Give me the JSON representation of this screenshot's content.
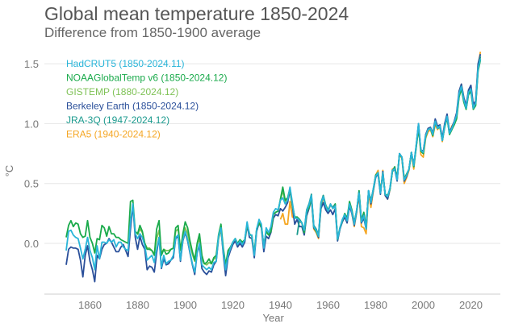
{
  "title": "Global mean temperature 1850-2024",
  "subtitle": "Difference from 1850-1900 average",
  "chart_data": {
    "type": "line",
    "title": "Global mean temperature 1850-2024",
    "subtitle": "Difference from 1850-1900 average",
    "xlabel": "Year",
    "ylabel": "°C",
    "xlim": [
      1850,
      2024
    ],
    "ylim": [
      -0.35,
      1.6
    ],
    "xticks": [
      1860,
      1880,
      1900,
      1920,
      1940,
      1960,
      1980,
      2000,
      2020
    ],
    "yticks": [
      "0.0",
      "0.5",
      "1.0",
      "1.5"
    ],
    "grid": "horizontal",
    "legend_position": "top-left",
    "series": [
      {
        "name": "ERA5 (1940-2024.12)",
        "color": "#f5a623",
        "start": 1940,
        "values": [
          0.2,
          0.25,
          0.16,
          0.16,
          0.35,
          0.22,
          0.21,
          0.22,
          0.18,
          0.17,
          0.11,
          0.25,
          0.3,
          0.38,
          0.12,
          0.09,
          0.04,
          0.31,
          0.38,
          0.3,
          0.27,
          0.33,
          0.29,
          0.32,
          0.03,
          0.13,
          0.19,
          0.24,
          0.18,
          0.32,
          0.25,
          0.14,
          0.26,
          0.4,
          0.14,
          0.13,
          0.08,
          0.42,
          0.3,
          0.44,
          0.57,
          0.61,
          0.42,
          0.61,
          0.4,
          0.37,
          0.45,
          0.62,
          0.63,
          0.53,
          0.74,
          0.71,
          0.5,
          0.55,
          0.61,
          0.75,
          0.62,
          0.82,
          0.98,
          0.74,
          0.72,
          0.88,
          0.93,
          0.95,
          0.89,
          0.99,
          0.95,
          0.98,
          0.85,
          0.98,
          1.05,
          0.92,
          0.98,
          1.01,
          1.07,
          1.23,
          1.33,
          1.21,
          1.13,
          1.27,
          1.3,
          1.15,
          1.19,
          1.48,
          1.6
        ]
      },
      {
        "name": "Berkeley Earth (1850-2024.12)",
        "color": "#2a4f9a",
        "start": 1850,
        "values": [
          -0.18,
          -0.05,
          -0.03,
          -0.04,
          -0.04,
          -0.05,
          -0.14,
          -0.28,
          -0.1,
          -0.02,
          -0.15,
          -0.22,
          -0.32,
          -0.1,
          -0.13,
          -0.05,
          -0.01,
          0.0,
          0.04,
          0.01,
          -0.03,
          -0.07,
          -0.07,
          -0.03,
          -0.01,
          -0.06,
          -0.11,
          0.12,
          0.32,
          0.05,
          -0.05,
          0.06,
          -0.01,
          -0.05,
          -0.22,
          -0.19,
          -0.2,
          -0.24,
          -0.08,
          0.05,
          -0.21,
          -0.13,
          -0.18,
          -0.17,
          -0.14,
          -0.12,
          0.04,
          0.06,
          -0.15,
          0.02,
          0.09,
          0.02,
          -0.08,
          -0.18,
          -0.26,
          -0.08,
          -0.02,
          -0.21,
          -0.24,
          -0.26,
          -0.23,
          -0.24,
          -0.18,
          -0.15,
          0.04,
          0.12,
          -0.09,
          -0.27,
          -0.12,
          -0.06,
          -0.01,
          0.02,
          -0.03,
          0.0,
          -0.03,
          0.01,
          0.15,
          0.05,
          0.04,
          -0.12,
          0.1,
          0.17,
          0.13,
          -0.07,
          0.06,
          0.04,
          0.09,
          0.21,
          0.24,
          0.23,
          0.29,
          0.27,
          0.3,
          0.34,
          0.44,
          0.31,
          0.16,
          0.2,
          0.14,
          0.14,
          0.07,
          0.23,
          0.29,
          0.37,
          0.13,
          0.1,
          0.05,
          0.29,
          0.34,
          0.28,
          0.25,
          0.28,
          0.24,
          0.29,
          0.02,
          0.12,
          0.18,
          0.22,
          0.17,
          0.31,
          0.25,
          0.15,
          0.26,
          0.41,
          0.17,
          0.21,
          0.12,
          0.44,
          0.33,
          0.44,
          0.55,
          0.58,
          0.41,
          0.6,
          0.4,
          0.37,
          0.45,
          0.6,
          0.62,
          0.52,
          0.75,
          0.72,
          0.52,
          0.56,
          0.62,
          0.76,
          0.65,
          0.81,
          1.0,
          0.78,
          0.77,
          0.91,
          0.96,
          0.97,
          0.92,
          1.04,
          0.98,
          0.99,
          0.88,
          1.0,
          1.08,
          0.93,
          0.97,
          1.02,
          1.09,
          1.27,
          1.33,
          1.22,
          1.15,
          1.28,
          1.32,
          1.16,
          1.19,
          1.5,
          1.58
        ]
      },
      {
        "name": "GISTEMP (1880-2024.12)",
        "color": "#7fc256",
        "start": 1880,
        "values": [
          0.07,
          0.12,
          0.09,
          0.0,
          -0.04,
          -0.04,
          -0.06,
          -0.09,
          0.04,
          0.11,
          -0.08,
          -0.05,
          -0.06,
          -0.06,
          -0.05,
          -0.04,
          0.1,
          0.12,
          -0.05,
          0.05,
          0.13,
          0.08,
          0.0,
          -0.09,
          -0.15,
          -0.01,
          0.04,
          -0.13,
          -0.17,
          -0.18,
          -0.16,
          -0.17,
          -0.13,
          -0.12,
          0.04,
          0.12,
          -0.06,
          -0.19,
          -0.08,
          -0.04,
          0.01,
          0.04,
          0.0,
          0.03,
          0.01,
          0.03,
          0.16,
          0.08,
          0.06,
          -0.08,
          0.12,
          0.17,
          0.14,
          -0.02,
          0.1,
          0.07,
          0.1,
          0.24,
          0.26,
          0.27,
          0.36,
          0.44,
          0.35,
          0.37,
          0.45,
          0.32,
          0.22,
          0.21,
          0.2,
          0.17,
          0.09,
          0.26,
          0.3,
          0.39,
          0.14,
          0.1,
          0.06,
          0.32,
          0.39,
          0.31,
          0.28,
          0.32,
          0.3,
          0.32,
          0.04,
          0.13,
          0.19,
          0.24,
          0.2,
          0.34,
          0.27,
          0.17,
          0.27,
          0.43,
          0.19,
          0.25,
          0.14,
          0.43,
          0.35,
          0.45,
          0.56,
          0.59,
          0.43,
          0.58,
          0.41,
          0.39,
          0.45,
          0.6,
          0.63,
          0.55,
          0.74,
          0.72,
          0.54,
          0.57,
          0.62,
          0.76,
          0.64,
          0.8,
          0.97,
          0.77,
          0.75,
          0.89,
          0.95,
          0.96,
          0.9,
          1.02,
          0.96,
          0.97,
          0.86,
          0.97,
          1.05,
          0.91,
          0.95,
          1.0,
          1.05,
          1.23,
          1.3,
          1.19,
          1.12,
          1.25,
          1.28,
          1.12,
          1.16,
          1.45,
          1.54
        ]
      },
      {
        "name": "NOAAGlobalTemp v6 (1850-2024.12)",
        "color": "#1aaa4b",
        "start": 1850,
        "values": [
          0.05,
          0.15,
          0.19,
          0.14,
          0.17,
          0.16,
          0.08,
          0.05,
          0.06,
          0.19,
          0.05,
          0.0,
          -0.08,
          0.04,
          0.03,
          0.15,
          0.13,
          0.06,
          0.14,
          0.08,
          0.08,
          0.05,
          0.05,
          0.03,
          0.02,
          0.01,
          0.0,
          0.35,
          0.36,
          0.1,
          0.08,
          0.15,
          0.1,
          0.0,
          -0.05,
          -0.05,
          -0.06,
          -0.1,
          0.12,
          0.19,
          -0.1,
          -0.05,
          -0.09,
          -0.08,
          -0.05,
          -0.04,
          0.13,
          0.15,
          -0.06,
          0.08,
          0.18,
          0.13,
          0.02,
          -0.07,
          -0.14,
          0.0,
          0.08,
          -0.1,
          -0.17,
          -0.16,
          -0.13,
          -0.17,
          -0.12,
          -0.1,
          0.07,
          0.16,
          -0.04,
          -0.18,
          -0.06,
          -0.03,
          0.01,
          0.04,
          0.0,
          0.03,
          0.01,
          0.03,
          0.16,
          0.08,
          0.06,
          -0.08,
          0.12,
          0.17,
          0.14,
          -0.02,
          0.1,
          0.07,
          0.1,
          0.24,
          0.26,
          0.27,
          0.37,
          0.47,
          0.36,
          0.38,
          0.46,
          0.32,
          0.22,
          0.22,
          0.2,
          0.17,
          0.09,
          0.26,
          0.3,
          0.39,
          0.14,
          0.1,
          0.06,
          0.32,
          0.4,
          0.32,
          0.28,
          0.32,
          0.3,
          0.33,
          0.04,
          0.13,
          0.19,
          0.25,
          0.21,
          0.35,
          0.28,
          0.17,
          0.27,
          0.44,
          0.19,
          0.26,
          0.14,
          0.43,
          0.36,
          0.45,
          0.57,
          0.59,
          0.43,
          0.58,
          0.41,
          0.4,
          0.45,
          0.6,
          0.64,
          0.55,
          0.74,
          0.72,
          0.54,
          0.58,
          0.62,
          0.76,
          0.64,
          0.8,
          0.96,
          0.77,
          0.75,
          0.89,
          0.95,
          0.96,
          0.9,
          1.01,
          0.96,
          0.97,
          0.86,
          0.97,
          1.05,
          0.91,
          0.95,
          0.99,
          1.04,
          1.22,
          1.29,
          1.18,
          1.12,
          1.24,
          1.27,
          1.12,
          1.15,
          1.44,
          1.53
        ]
      },
      {
        "name": "JRA-3Q (1947-2024.12)",
        "color": "#1b9a8e",
        "start": 1947,
        "values": [
          0.07,
          0.2,
          0.17,
          0.11,
          0.28,
          0.33,
          0.41,
          0.15,
          0.12,
          0.07,
          0.34,
          0.4,
          0.31,
          0.27,
          0.32,
          0.3,
          0.32,
          0.03,
          0.13,
          0.19,
          0.24,
          0.19,
          0.33,
          0.27,
          0.17,
          0.27,
          0.43,
          0.18,
          0.24,
          0.13,
          0.44,
          0.35,
          0.45,
          0.56,
          0.59,
          0.42,
          0.59,
          0.41,
          0.39,
          0.46,
          0.61,
          0.63,
          0.54,
          0.75,
          0.72,
          0.53,
          0.57,
          0.62,
          0.76,
          0.65,
          0.81,
          0.99,
          0.78,
          0.76,
          0.9,
          0.95,
          0.96,
          0.91,
          1.02,
          0.96,
          0.98,
          0.86,
          0.98,
          1.06,
          0.92,
          0.96,
          1.01,
          1.07,
          1.25,
          1.31,
          1.2,
          1.13,
          1.26,
          1.29,
          1.13,
          1.17,
          1.46,
          1.56
        ]
      },
      {
        "name": "HadCRUT5 (1850-2024.11)",
        "color": "#29b5d9",
        "start": 1850,
        "values": [
          -0.06,
          0.1,
          0.11,
          0.07,
          0.05,
          0.04,
          -0.04,
          -0.13,
          -0.05,
          0.05,
          -0.06,
          -0.12,
          -0.22,
          -0.02,
          -0.13,
          0.01,
          0.01,
          0.0,
          0.03,
          0.01,
          0.03,
          -0.03,
          0.01,
          0.01,
          -0.03,
          -0.05,
          -0.06,
          0.18,
          0.33,
          0.08,
          0.04,
          0.08,
          0.05,
          -0.02,
          -0.14,
          -0.12,
          -0.1,
          -0.16,
          -0.05,
          0.05,
          -0.2,
          -0.1,
          -0.17,
          -0.15,
          -0.14,
          -0.1,
          0.05,
          0.07,
          -0.14,
          0.03,
          0.1,
          0.03,
          -0.07,
          -0.17,
          -0.24,
          -0.08,
          0.0,
          -0.18,
          -0.2,
          -0.22,
          -0.2,
          -0.22,
          -0.16,
          -0.15,
          0.06,
          0.13,
          -0.07,
          -0.22,
          -0.1,
          -0.04,
          0.01,
          0.04,
          -0.01,
          0.02,
          -0.01,
          0.03,
          0.18,
          0.07,
          0.07,
          -0.1,
          0.12,
          0.2,
          0.16,
          -0.04,
          0.13,
          0.09,
          0.14,
          0.26,
          0.29,
          0.28,
          0.36,
          0.38,
          0.33,
          0.36,
          0.47,
          0.34,
          0.21,
          0.21,
          0.19,
          0.17,
          0.11,
          0.27,
          0.32,
          0.4,
          0.14,
          0.11,
          0.06,
          0.33,
          0.39,
          0.31,
          0.27,
          0.33,
          0.29,
          0.31,
          0.04,
          0.13,
          0.2,
          0.24,
          0.19,
          0.33,
          0.26,
          0.16,
          0.28,
          0.42,
          0.18,
          0.23,
          0.12,
          0.44,
          0.34,
          0.46,
          0.56,
          0.59,
          0.42,
          0.59,
          0.41,
          0.39,
          0.46,
          0.61,
          0.62,
          0.53,
          0.75,
          0.72,
          0.53,
          0.57,
          0.62,
          0.76,
          0.65,
          0.82,
          1.0,
          0.78,
          0.76,
          0.9,
          0.95,
          0.96,
          0.91,
          1.02,
          0.96,
          0.98,
          0.86,
          0.98,
          1.06,
          0.92,
          0.96,
          1.01,
          1.07,
          1.25,
          1.31,
          1.2,
          1.13,
          1.26,
          1.29,
          1.13,
          1.17,
          1.46,
          1.54
        ]
      }
    ],
    "legend_order": [
      "HadCRUT5 (1850-2024.11)",
      "NOAAGlobalTemp v6 (1850-2024.12)",
      "GISTEMP (1880-2024.12)",
      "Berkeley Earth (1850-2024.12)",
      "JRA-3Q (1947-2024.12)",
      "ERA5 (1940-2024.12)"
    ]
  }
}
